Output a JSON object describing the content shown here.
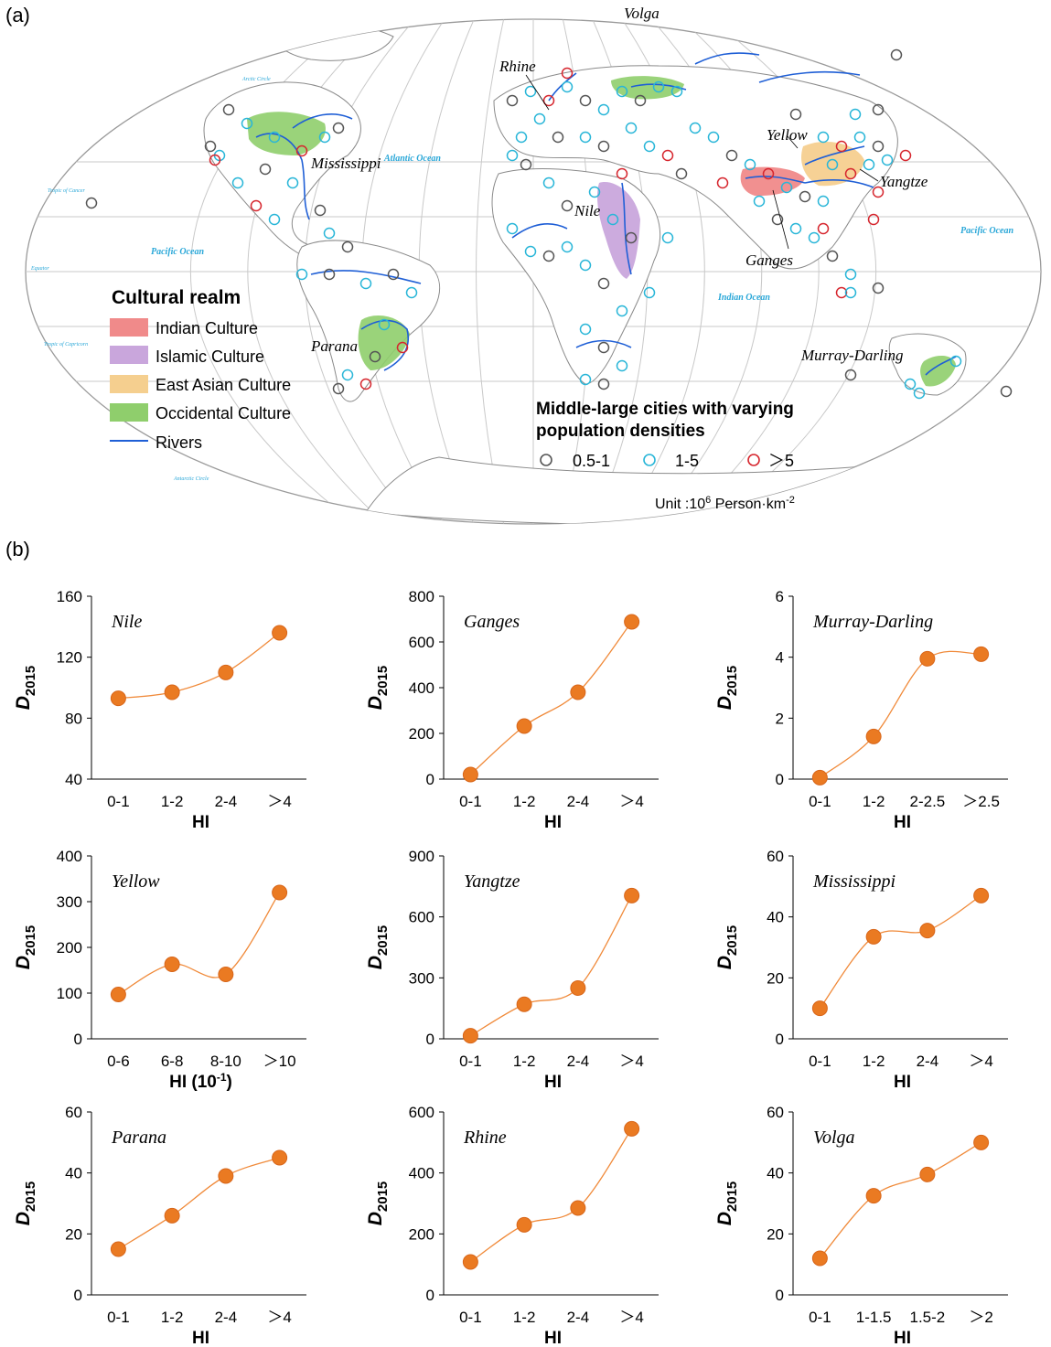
{
  "panels": {
    "a": "(a)",
    "b": "(b)"
  },
  "map": {
    "oceans": [
      "Atlantic Ocean",
      "Pacific Ocean",
      "Pacific Ocean",
      "Indian Ocean"
    ],
    "lines": [
      "Arctic Circle",
      "Tropic of Cancer",
      "Equator",
      "Tropic of Capricorn",
      "Antarctic Circle"
    ],
    "rivers": [
      "Rhine",
      "Volga",
      "Mississippi",
      "Yellow",
      "Yangtze",
      "Nile",
      "Ganges",
      "Parana",
      "Murray-Darling"
    ],
    "legend": {
      "title": "Cultural realm",
      "items": [
        {
          "label": "Indian Culture",
          "color": "#f08a8a"
        },
        {
          "label": "Islamic Culture",
          "color": "#c9a6dc"
        },
        {
          "label": "East Asian Culture",
          "color": "#f5cf8f"
        },
        {
          "label": "Occidental Culture",
          "color": "#8fce6c"
        }
      ],
      "rivers_label": "Rivers",
      "river_color": "#1f5fd6"
    },
    "cities": {
      "title_line1": "Middle-large cities with varying",
      "title_line2": "population densities",
      "items": [
        {
          "label": "0.5-1",
          "color": "#555555"
        },
        {
          "label": "1-5",
          "color": "#29b6d8"
        },
        {
          "label": "＞5",
          "color": "#d6262e"
        }
      ],
      "unit_prefix": "Unit :10",
      "unit_sup": "6",
      "unit_suffix": " Person·km",
      "unit_sup2": "-2"
    }
  },
  "chart_data": [
    {
      "type": "line",
      "title": "Nile",
      "categories": [
        "0-1",
        "1-2",
        "2-4",
        "＞4"
      ],
      "values": [
        93,
        97,
        110,
        136
      ],
      "ylim": [
        40,
        160
      ],
      "yticks": [
        40,
        80,
        120,
        160
      ],
      "xlabel": "HI",
      "ylabel": "D",
      "ylabel_sub": "2015"
    },
    {
      "type": "line",
      "title": "Ganges",
      "categories": [
        "0-1",
        "1-2",
        "2-4",
        "＞4"
      ],
      "values": [
        20,
        232,
        380,
        688
      ],
      "ylim": [
        0,
        800
      ],
      "yticks": [
        0,
        200,
        400,
        600,
        800
      ],
      "xlabel": "HI",
      "ylabel": "D",
      "ylabel_sub": "2015"
    },
    {
      "type": "line",
      "title": "Murray-Darling",
      "categories": [
        "0-1",
        "1-2",
        "2-2.5",
        "＞2.5"
      ],
      "values": [
        0.05,
        1.4,
        3.95,
        4.1
      ],
      "ylim": [
        0,
        6
      ],
      "yticks": [
        0,
        2,
        4,
        6
      ],
      "xlabel": "HI",
      "ylabel": "D",
      "ylabel_sub": "2015"
    },
    {
      "type": "line",
      "title": "Yellow",
      "categories": [
        "0-6",
        "6-8",
        "8-10",
        "＞10"
      ],
      "values": [
        97,
        163,
        141,
        320
      ],
      "ylim": [
        0,
        400
      ],
      "yticks": [
        0,
        100,
        200,
        300,
        400
      ],
      "xlabel": "HI (10",
      "xlabel_sup": "-1",
      "xlabel_end": ")",
      "ylabel": "D",
      "ylabel_sub": "2015"
    },
    {
      "type": "line",
      "title": "Yangtze",
      "categories": [
        "0-1",
        "1-2",
        "2-4",
        "＞4"
      ],
      "values": [
        15,
        170,
        250,
        705
      ],
      "ylim": [
        0,
        900
      ],
      "yticks": [
        0,
        300,
        600,
        900
      ],
      "xlabel": "HI",
      "ylabel": "D",
      "ylabel_sub": "2015"
    },
    {
      "type": "line",
      "title": "Mississippi",
      "categories": [
        "0-1",
        "1-2",
        "2-4",
        "＞4"
      ],
      "values": [
        10,
        33.5,
        35.5,
        47
      ],
      "ylim": [
        0,
        60
      ],
      "yticks": [
        0,
        20,
        40,
        60
      ],
      "xlabel": "HI",
      "ylabel": "D",
      "ylabel_sub": "2015"
    },
    {
      "type": "line",
      "title": "Parana",
      "categories": [
        "0-1",
        "1-2",
        "2-4",
        "＞4"
      ],
      "values": [
        15,
        26,
        39,
        45
      ],
      "ylim": [
        0,
        60
      ],
      "yticks": [
        0,
        20,
        40,
        60
      ],
      "xlabel": "HI",
      "ylabel": "D",
      "ylabel_sub": "2015"
    },
    {
      "type": "line",
      "title": "Rhine",
      "categories": [
        "0-1",
        "1-2",
        "2-4",
        "＞4"
      ],
      "values": [
        108,
        230,
        285,
        545
      ],
      "ylim": [
        0,
        600
      ],
      "yticks": [
        0,
        200,
        400,
        600
      ],
      "xlabel": "HI",
      "ylabel": "D",
      "ylabel_sub": "2015"
    },
    {
      "type": "line",
      "title": "Volga",
      "categories": [
        "0-1",
        "1-1.5",
        "1.5-2",
        "＞2"
      ],
      "values": [
        12,
        32.5,
        39.5,
        50
      ],
      "ylim": [
        0,
        60
      ],
      "yticks": [
        0,
        20,
        40,
        60
      ],
      "xlabel": "HI",
      "ylabel": "D",
      "ylabel_sub": "2015"
    }
  ],
  "style": {
    "point_color": "#ea7a22",
    "point_stroke": "#d8661a",
    "line_color": "#f08a3a"
  }
}
